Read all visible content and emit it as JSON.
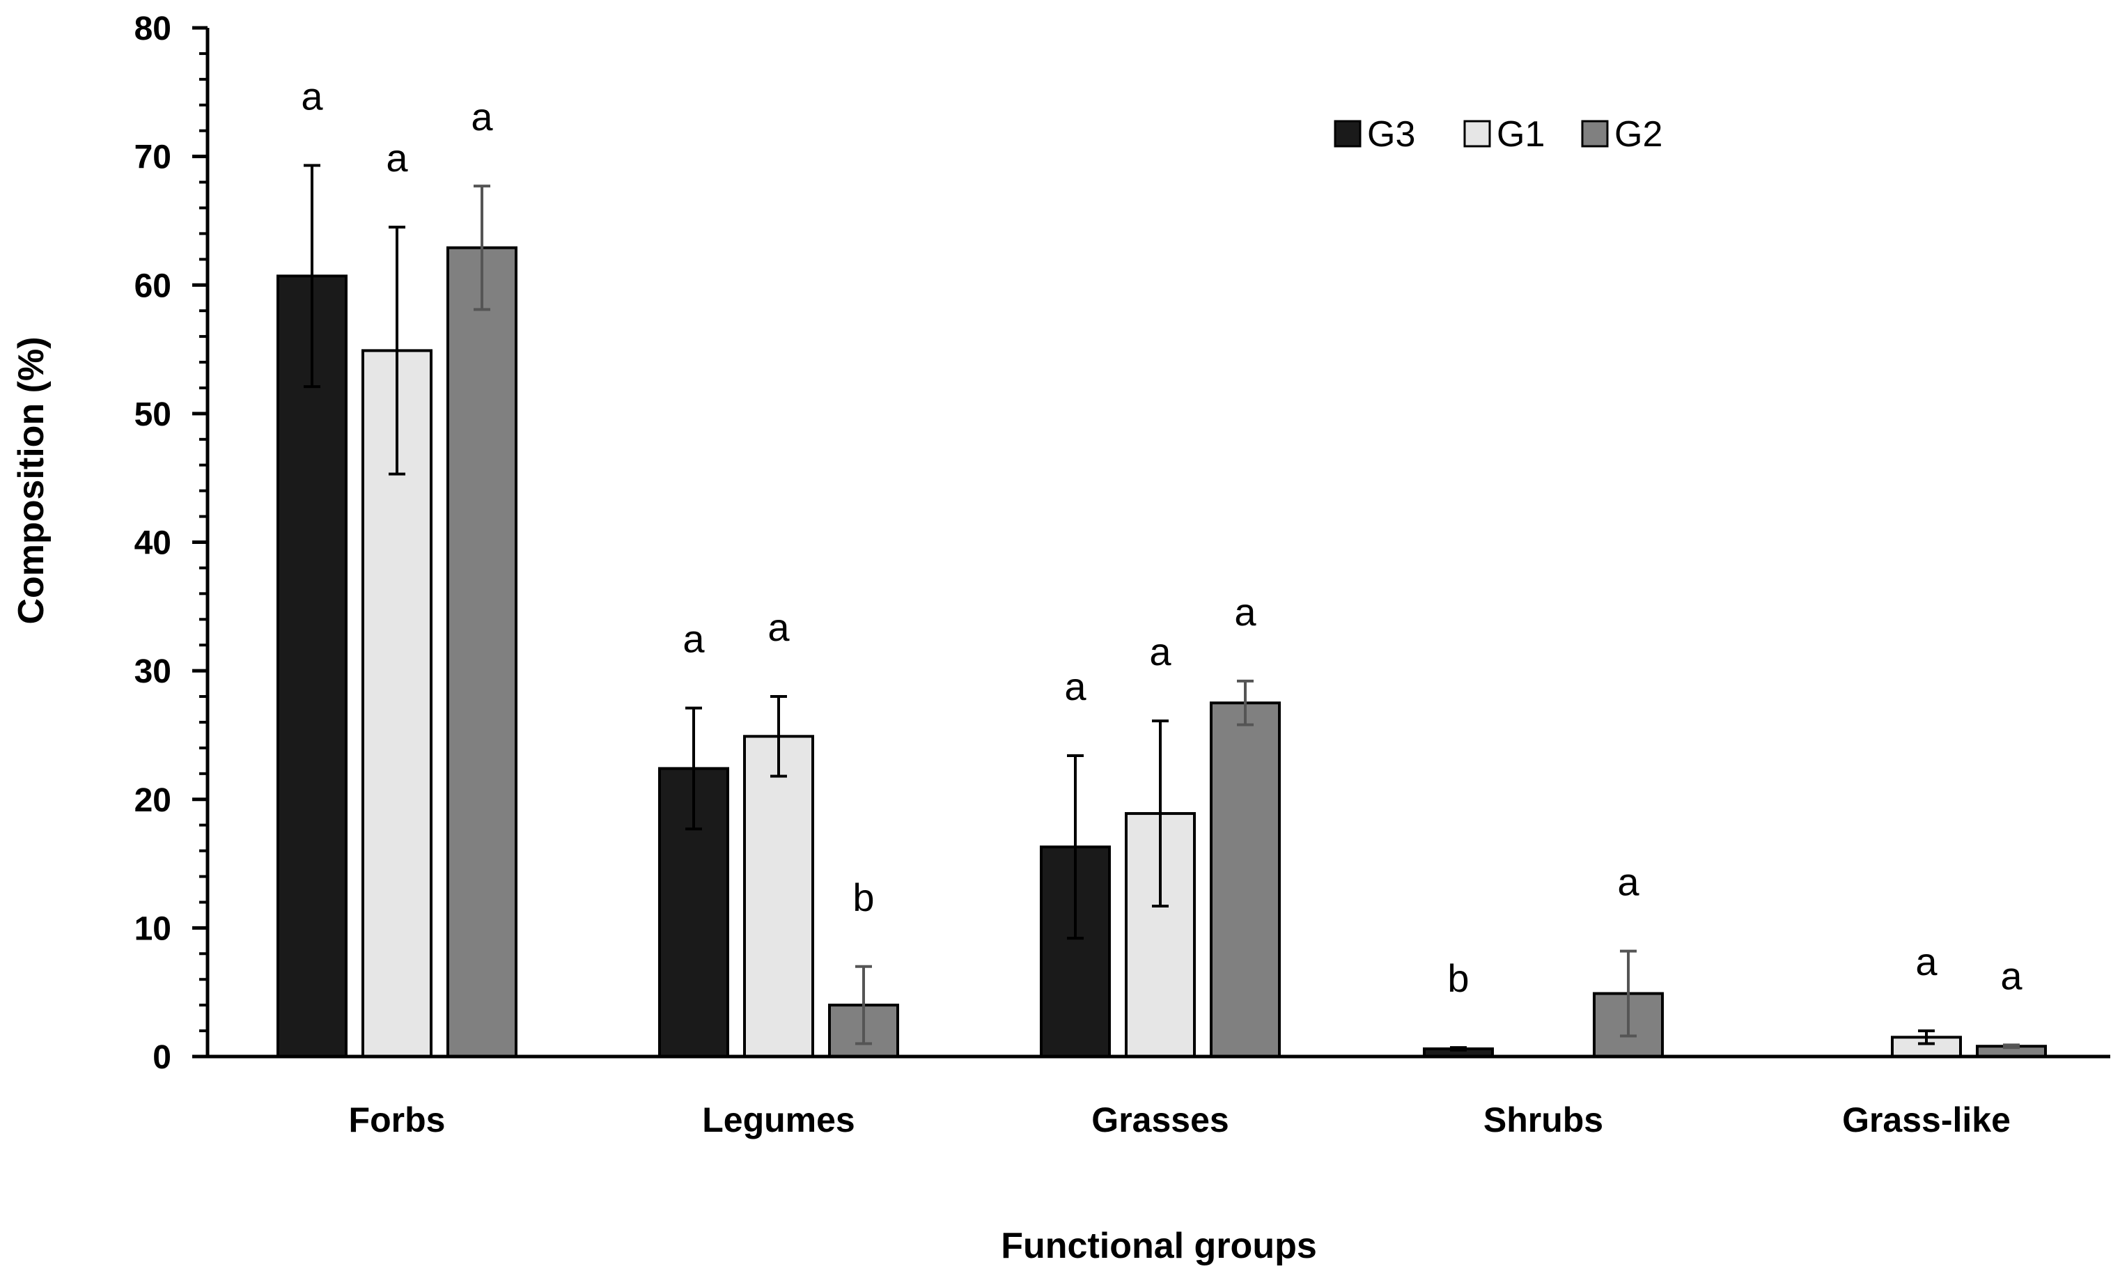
{
  "chart_data": {
    "type": "bar",
    "title": "",
    "xlabel": "Functional groups",
    "ylabel": "Composition (%)",
    "ylim": [
      0,
      80
    ],
    "yticks": [
      "0",
      "10",
      "20",
      "30",
      "40",
      "50",
      "60",
      "70",
      "80"
    ],
    "categories": [
      "Forbs",
      "Legumes",
      "Grasses",
      "Shrubs",
      "Grass-like"
    ],
    "legend_position": "top-right",
    "series": [
      {
        "name": "G3",
        "color": "#1a1a1a",
        "values": [
          60.7,
          22.4,
          16.3,
          0.6,
          null
        ],
        "errors": [
          8.6,
          4.7,
          7.1,
          0.1,
          null
        ],
        "letters": [
          "a",
          "a",
          "a",
          "b",
          ""
        ]
      },
      {
        "name": "G1",
        "color": "#e6e6e6",
        "values": [
          54.9,
          24.9,
          18.9,
          null,
          1.5
        ],
        "errors": [
          9.6,
          3.1,
          7.2,
          null,
          0.5
        ],
        "letters": [
          "a",
          "a",
          "a",
          "",
          "a"
        ]
      },
      {
        "name": "G2",
        "color": "#808080",
        "values": [
          62.9,
          4.0,
          27.5,
          4.9,
          0.8
        ],
        "errors": [
          4.8,
          3.0,
          1.7,
          3.3,
          0.1
        ],
        "letters": [
          "a",
          "b",
          "a",
          "a",
          "a"
        ]
      }
    ]
  }
}
